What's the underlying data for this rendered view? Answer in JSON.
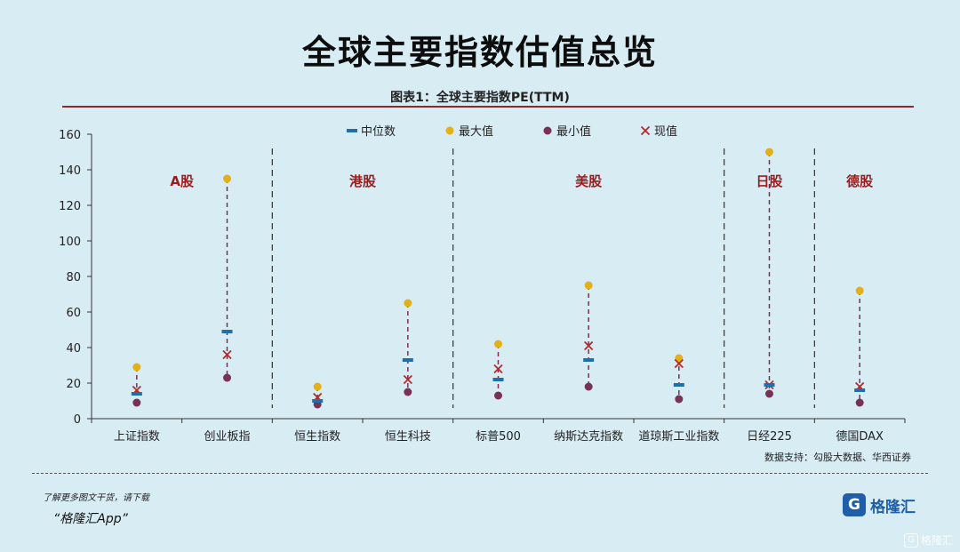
{
  "page": {
    "title": "全球主要指数估值总览",
    "subtitle": "图表1：全球主要指数PE(TTM)",
    "source": "数据支持：勾股大数据、华西证券",
    "footer_note": "了解更多图文干货，请下载",
    "footer_app": "“格隆汇App”",
    "logo_text": "格隆汇",
    "logo_letter": "G",
    "corner_mark": "格隆汇"
  },
  "chart_data": {
    "type": "scatter",
    "title": "全球主要指数PE(TTM)",
    "xlabel": "",
    "ylabel": "",
    "ylim": [
      0,
      160
    ],
    "yticks": [
      0,
      20,
      40,
      60,
      80,
      100,
      120,
      140,
      160
    ],
    "categories": [
      "上证指数",
      "创业板指",
      "恒生指数",
      "恒生科技",
      "标普500",
      "纳斯达克指数",
      "道琼斯工业指数",
      "日经225",
      "德国DAX"
    ],
    "series": [
      {
        "name": "中位数",
        "color": "#1f6fa8",
        "marker": "dash",
        "values": [
          14,
          49,
          10,
          33,
          22,
          33,
          19,
          19,
          16
        ]
      },
      {
        "name": "最大值",
        "color": "#e3b016",
        "marker": "circle",
        "values": [
          29,
          135,
          18,
          65,
          42,
          75,
          34,
          150,
          72
        ]
      },
      {
        "name": "最小值",
        "color": "#7a3158",
        "marker": "circle",
        "values": [
          9,
          23,
          8,
          15,
          13,
          18,
          11,
          14,
          9
        ]
      },
      {
        "name": "现值",
        "color": "#b52a2a",
        "marker": "x",
        "values": [
          16,
          36,
          12,
          22,
          28,
          41,
          31,
          19,
          18
        ]
      }
    ],
    "groups": [
      {
        "label": "A股",
        "categories": [
          "上证指数",
          "创业板指"
        ]
      },
      {
        "label": "港股",
        "categories": [
          "恒生指数",
          "恒生科技"
        ]
      },
      {
        "label": "美股",
        "categories": [
          "标普500",
          "纳斯达克指数",
          "道琼斯工业指数"
        ]
      },
      {
        "label": "日股",
        "categories": [
          "日经225"
        ]
      },
      {
        "label": "德股",
        "categories": [
          "德国DAX"
        ]
      }
    ],
    "range_line_color": "#7a3158",
    "group_label_color": "#a01c1c",
    "grid": false,
    "legend_position": "top"
  }
}
